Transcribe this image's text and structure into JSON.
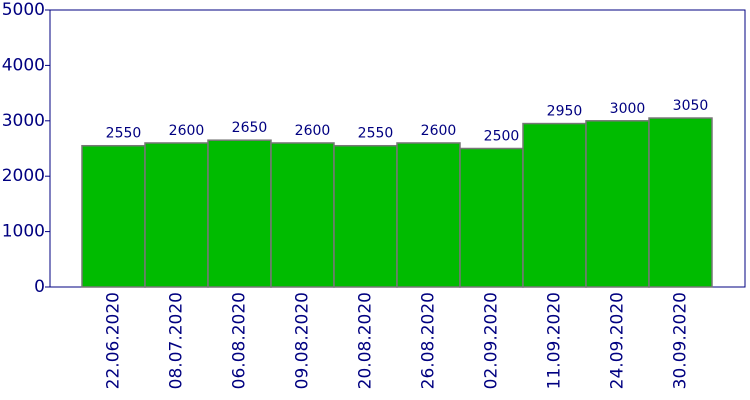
{
  "chart_data": {
    "type": "bar",
    "categories": [
      "22.06.2020",
      "08.07.2020",
      "06.08.2020",
      "09.08.2020",
      "20.08.2020",
      "26.08.2020",
      "02.09.2020",
      "11.09.2020",
      "24.09.2020",
      "30.09.2020"
    ],
    "values": [
      2550,
      2600,
      2650,
      2600,
      2550,
      2600,
      2500,
      2950,
      3000,
      3050
    ],
    "color": "#00bb00",
    "ylim": [
      0,
      5000
    ],
    "yticks": [
      0,
      1000,
      2000,
      3000,
      4000,
      5000
    ]
  }
}
